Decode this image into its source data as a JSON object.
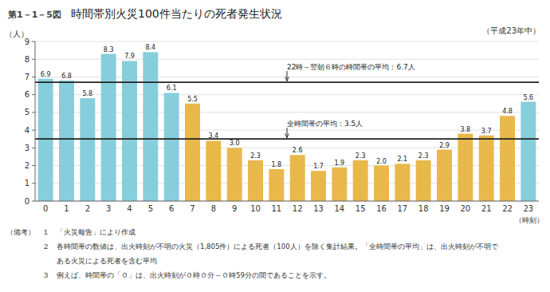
{
  "chart_data": {
    "type": "bar",
    "title": "時間帯別火災100件当たりの死者発生状況",
    "title_label": "第1－1－5図",
    "subtitle": "（平成23年中）",
    "ylabel": "（人）",
    "xlabel": "（時刻）",
    "categories": [
      "0",
      "1",
      "2",
      "3",
      "4",
      "5",
      "6",
      "7",
      "8",
      "9",
      "10",
      "11",
      "12",
      "13",
      "14",
      "15",
      "16",
      "17",
      "18",
      "19",
      "20",
      "21",
      "22",
      "23"
    ],
    "values": [
      6.9,
      6.8,
      5.8,
      8.3,
      7.9,
      8.4,
      6.1,
      5.5,
      3.4,
      3.0,
      2.3,
      1.8,
      2.6,
      1.7,
      1.9,
      2.3,
      2.0,
      2.1,
      2.3,
      2.9,
      3.8,
      3.7,
      4.8,
      5.6
    ],
    "value_labels": [
      "6.9",
      "6.8",
      "5.8",
      "8.3",
      "7.9",
      "8.4",
      "6.1",
      "5.5",
      "3.4",
      "3.0",
      "2.3",
      "1.8",
      "2.6",
      "1.7",
      "1.9",
      "2.3",
      "2.0",
      "2.1",
      "2.3",
      "2.9",
      "3.8",
      "3.7",
      "4.8",
      "5.6"
    ],
    "data_labels": true,
    "colors": [
      "#87CEDC",
      "#87CEDC",
      "#87CEDC",
      "#87CEDC",
      "#87CEDC",
      "#87CEDC",
      "#87CEDC",
      "#E8B84B",
      "#E8B84B",
      "#E8B84B",
      "#E8B84B",
      "#E8B84B",
      "#E8B84B",
      "#E8B84B",
      "#E8B84B",
      "#E8B84B",
      "#E8B84B",
      "#E8B84B",
      "#E8B84B",
      "#E8B84B",
      "#E8B84B",
      "#E8B84B",
      "#E8B84B",
      "#87CEDC"
    ],
    "annotations": [
      {
        "label": "22時～翌朝６時の時間帯の平均：6.7人",
        "value": 6.7
      },
      {
        "label": "全時間帯の平均：3.5人",
        "value": 3.5
      }
    ],
    "ylim": [
      0,
      9
    ],
    "yticks": [
      0,
      1,
      2,
      3,
      4,
      5,
      6,
      7,
      8,
      9
    ],
    "grid": true,
    "notes": [
      "（備考）　１　「火災報告」により作成",
      "　　　　　２　各時間帯の数値は、出火時刻が不明の火災（1,805件）による死者（100人）を除く集計結果。「全時間帯の平均」は、出火時刻が不明で",
      "　　　　　　　ある火災による死者を含む平均",
      "　　　　　３　例えば、時間帯の「０」は、出火時刻が０時０分～０時59分の間であることを示す。"
    ]
  }
}
